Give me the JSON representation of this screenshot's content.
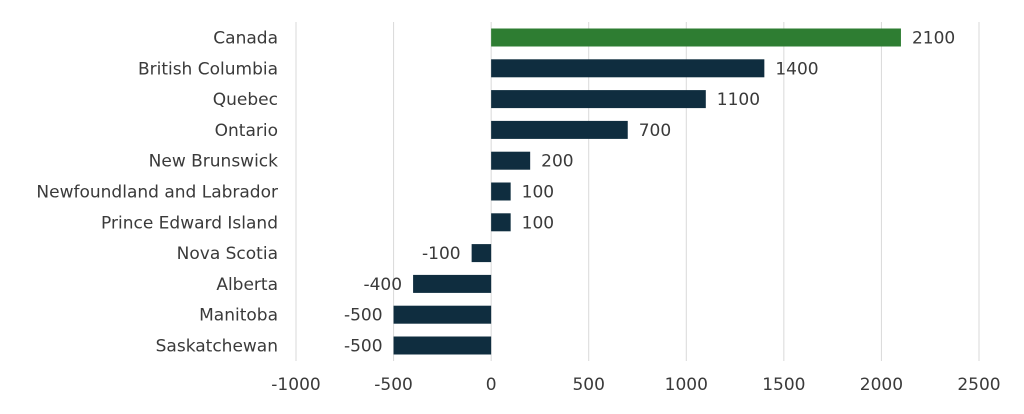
{
  "chart_data": {
    "type": "bar",
    "orientation": "horizontal",
    "title": "",
    "xlabel": "",
    "ylabel": "",
    "categories": [
      "Canada",
      "British Columbia",
      "Quebec",
      "Ontario",
      "New Brunswick",
      "Newfoundland and Labrador",
      "Prince Edward Island",
      "Nova Scotia",
      "Alberta",
      "Manitoba",
      "Saskatchewan"
    ],
    "values": [
      2100,
      1400,
      1100,
      700,
      200,
      100,
      100,
      -100,
      -400,
      -500,
      -500
    ],
    "data_labels": [
      "2100",
      "1400",
      "1100",
      "700",
      "200",
      "100",
      "100",
      "-100",
      "-400",
      "-500",
      "-500"
    ],
    "xlim": [
      -1000,
      2500
    ],
    "xticks": [
      -1000,
      -500,
      0,
      500,
      1000,
      1500,
      2000,
      2500
    ],
    "xtick_labels": [
      "-1000",
      "-500",
      "0",
      "500",
      "1000",
      "1500",
      "2000",
      "2500"
    ],
    "grid": "vertical",
    "legend": "none",
    "colors": {
      "highlight": "#2e7d32",
      "default": "#0f2d3f"
    },
    "highlight_category": "Canada"
  }
}
